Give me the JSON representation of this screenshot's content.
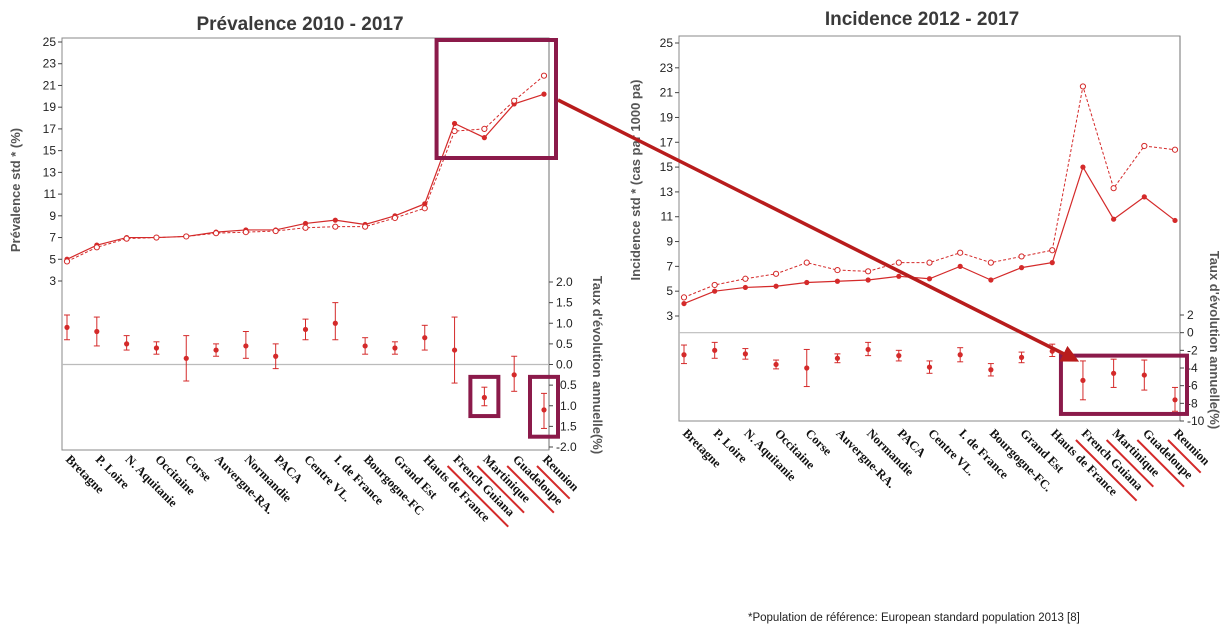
{
  "footnote": "*Population de référence: European standard population 2013 [8]",
  "colors": {
    "series": "#d42a2a",
    "highlight": "#8b1a4a",
    "arrow": "#b81c1c",
    "axis": "#888888"
  },
  "chart_data": [
    {
      "type": "line",
      "title": "Prévalence 2010 - 2017",
      "categories": [
        "Bretagne",
        "P. Loire",
        "N. Aquitanie",
        "Occitaine",
        "Corse",
        "Auvergne-RA.",
        "Normandie",
        "PACA",
        "Centre VL.",
        "I. de France",
        "Bourgogne-FC",
        "Grand Est",
        "Hauts de France",
        "French Guiana",
        "Martinique",
        "Guadeloupe",
        "Reunion"
      ],
      "underlined_categories": [
        "French Guiana",
        "Martinique",
        "Guadeloupe",
        "Reunion"
      ],
      "left_axis": {
        "label": "Prévalence std * (%)",
        "ticks": [
          "25",
          "23",
          "21",
          "19",
          "17",
          "15",
          "13",
          "11",
          "9",
          "7",
          "5",
          "3"
        ],
        "range": [
          3,
          25
        ]
      },
      "right_axis": {
        "label": "Taux d'évolution annuelle(%)",
        "ticks": [
          "2.0",
          "1.5",
          "1.0",
          "0.5",
          "0.0",
          "-0.5",
          "-1.0",
          "-1.5",
          "-2.0"
        ],
        "range": [
          -2,
          2
        ]
      },
      "series": [
        {
          "style": "solid",
          "values": [
            5.0,
            6.3,
            7.0,
            7.0,
            7.1,
            7.5,
            7.7,
            7.7,
            8.3,
            8.6,
            8.2,
            9.0,
            10.1,
            17.5,
            16.2,
            19.3,
            20.2
          ]
        },
        {
          "style": "dashed",
          "values": [
            4.8,
            6.1,
            6.9,
            7.0,
            7.1,
            7.4,
            7.5,
            7.6,
            7.9,
            8.0,
            8.0,
            8.8,
            9.7,
            16.8,
            17.0,
            19.6,
            21.9
          ]
        }
      ],
      "trend": {
        "values": [
          0.9,
          0.8,
          0.5,
          0.4,
          0.15,
          0.35,
          0.45,
          0.2,
          0.85,
          1.0,
          0.45,
          0.4,
          0.65,
          0.35,
          -0.8,
          -0.25,
          -1.1
        ],
        "lower": [
          0.6,
          0.45,
          0.35,
          0.25,
          -0.4,
          0.2,
          0.15,
          -0.1,
          0.6,
          0.6,
          0.25,
          0.25,
          0.35,
          -0.45,
          -1.0,
          -0.65,
          -1.55
        ],
        "upper": [
          1.2,
          1.15,
          0.7,
          0.55,
          0.7,
          0.5,
          0.8,
          0.5,
          1.1,
          1.5,
          0.65,
          0.55,
          0.95,
          1.15,
          -0.55,
          0.2,
          -0.7
        ]
      }
    },
    {
      "type": "line",
      "title": "Incidence 2012 - 2017",
      "categories": [
        "Bretagne",
        "P. Loire",
        "N. Aquitanie",
        "Occitaine",
        "Corse",
        "Auvergne-RA.",
        "Normandie",
        "PACA",
        "Centre VL.",
        "I. de France",
        "Bourgogne-FC.",
        "Grand Est",
        "Hauts de France",
        "French Guiana",
        "Martinique",
        "Guadeloupe",
        "Reunion"
      ],
      "underlined_categories": [
        "French Guiana",
        "Martinique",
        "Guadeloupe",
        "Reunion"
      ],
      "left_axis": {
        "label": "Incidence std * (cas par 1000 pa)",
        "ticks": [
          "25",
          "23",
          "21",
          "19",
          "17",
          "15",
          "13",
          "11",
          "9",
          "7",
          "5",
          "3"
        ],
        "range": [
          3,
          25
        ]
      },
      "right_axis": {
        "label": "Taux d'évolution annuelle(%)",
        "ticks": [
          "2",
          "0",
          "-2",
          "-4",
          "-6",
          "-8",
          "-10"
        ],
        "range": [
          -10,
          2
        ]
      },
      "series": [
        {
          "style": "solid",
          "values": [
            4.0,
            5.0,
            5.3,
            5.4,
            5.7,
            5.8,
            5.9,
            6.2,
            6.0,
            7.0,
            5.9,
            6.9,
            7.3,
            15.0,
            10.8,
            12.6,
            10.7
          ]
        },
        {
          "style": "dashed",
          "values": [
            4.5,
            5.5,
            6.0,
            6.4,
            7.3,
            6.7,
            6.6,
            7.3,
            7.3,
            8.1,
            7.3,
            7.8,
            8.3,
            21.5,
            13.3,
            16.7,
            16.4
          ]
        }
      ],
      "trend": {
        "values": [
          -2.5,
          -2.0,
          -2.4,
          -3.6,
          -4.0,
          -2.9,
          -1.9,
          -2.6,
          -3.9,
          -2.5,
          -4.2,
          -2.8,
          -2.1,
          -5.4,
          -4.6,
          -4.8,
          -7.6
        ],
        "lower": [
          -3.5,
          -2.9,
          -3.0,
          -4.1,
          -6.1,
          -3.4,
          -2.6,
          -3.2,
          -4.6,
          -3.3,
          -4.9,
          -3.4,
          -2.7,
          -7.6,
          -6.2,
          -6.5,
          -8.9
        ],
        "upper": [
          -1.4,
          -1.1,
          -1.8,
          -3.1,
          -1.9,
          -2.4,
          -1.1,
          -2.0,
          -3.2,
          -1.7,
          -3.5,
          -2.2,
          -1.3,
          -3.2,
          -3.0,
          -3.1,
          -6.2
        ]
      }
    }
  ]
}
